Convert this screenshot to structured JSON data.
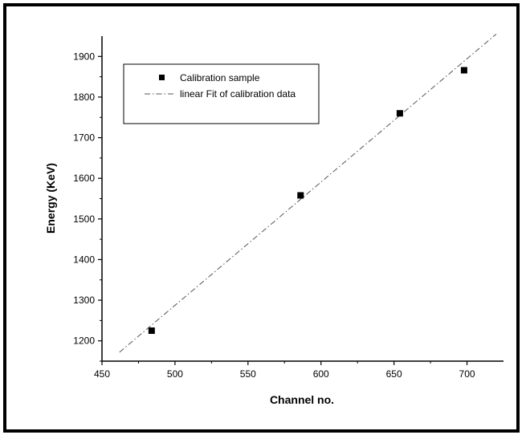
{
  "chart_data": {
    "type": "scatter",
    "title": "",
    "xlabel": "Channel no.",
    "ylabel": "Energy (KeV)",
    "xlim": [
      450,
      725
    ],
    "ylim": [
      1150,
      1950
    ],
    "x_ticks": [
      450,
      500,
      550,
      600,
      650,
      700
    ],
    "y_ticks": [
      1200,
      1300,
      1400,
      1500,
      1600,
      1700,
      1800,
      1900
    ],
    "grid": false,
    "legend_position": "top-left",
    "series": [
      {
        "name": "Calibration sample",
        "kind": "points",
        "marker": "square",
        "color": "#000000",
        "x": [
          484,
          586,
          654,
          698
        ],
        "y": [
          1225,
          1558,
          1760,
          1866
        ]
      },
      {
        "name": "linear Fit of calibration data",
        "kind": "line",
        "style": "dash-dot",
        "color": "#555555",
        "x": [
          462,
          720
        ],
        "y": [
          1172,
          1955
        ]
      }
    ]
  }
}
